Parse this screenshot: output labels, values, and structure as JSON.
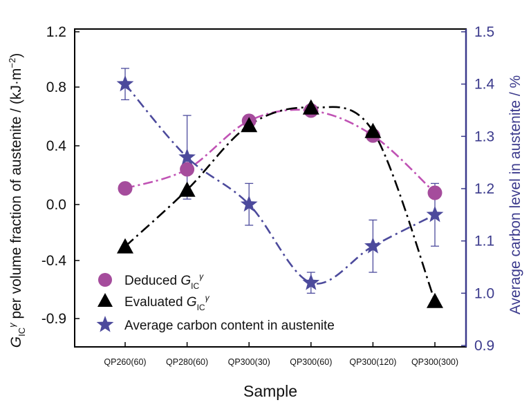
{
  "chart_data": {
    "type": "line",
    "xlabel": "Sample",
    "ylabel_left": "G_IC^γ per volume fraction of austenite / (kJ·m⁻²)",
    "ylabel_right": "Average carbon level in austenite / %",
    "categories": [
      "QP260(60)",
      "QP280(60)",
      "QP300(30)",
      "QP300(60)",
      "QP300(120)",
      "QP300(300)"
    ],
    "y_left": {
      "ticks": [
        1.2,
        0.8,
        0.4,
        0.0,
        -0.4,
        -0.9
      ],
      "tick_labels": [
        "1.2",
        "0.8",
        "0.4",
        "0.0",
        "-0.4",
        "-0.9"
      ]
    },
    "y_right": {
      "ylim": [
        0.9,
        1.5
      ],
      "ticks": [
        1.5,
        1.4,
        1.3,
        1.2,
        1.1,
        1.0,
        0.9
      ],
      "tick_labels": [
        "1.5",
        "1.4",
        "1.3",
        "1.2",
        "1.1",
        "1.0",
        "0.9"
      ]
    },
    "series": [
      {
        "name": "Deduced G_IC^γ",
        "legend_label": "Deduced",
        "axis": "left",
        "marker": "circle",
        "color": "#a54c9c",
        "line_color": "#c052b4",
        "values": [
          0.11,
          0.24,
          0.57,
          0.64,
          0.47,
          0.08
        ]
      },
      {
        "name": "Evaluated G_IC^γ",
        "legend_label": "Evaluated",
        "axis": "left",
        "marker": "triangle",
        "color": "#000000",
        "line_color": "#000000",
        "values": [
          -0.3,
          0.1,
          0.54,
          0.66,
          0.5,
          -0.75
        ]
      },
      {
        "name": "Average carbon content in austenite",
        "legend_label": "Average carbon content in austenite",
        "axis": "right",
        "marker": "star",
        "color": "#4c4a9c",
        "line_color": "#4c4a9c",
        "values": [
          1.4,
          1.26,
          1.17,
          1.02,
          1.09,
          1.15
        ],
        "errors": [
          0.03,
          0.08,
          0.04,
          0.02,
          0.05,
          0.06
        ]
      }
    ],
    "legend_position": "bottom-left",
    "grid": false
  }
}
